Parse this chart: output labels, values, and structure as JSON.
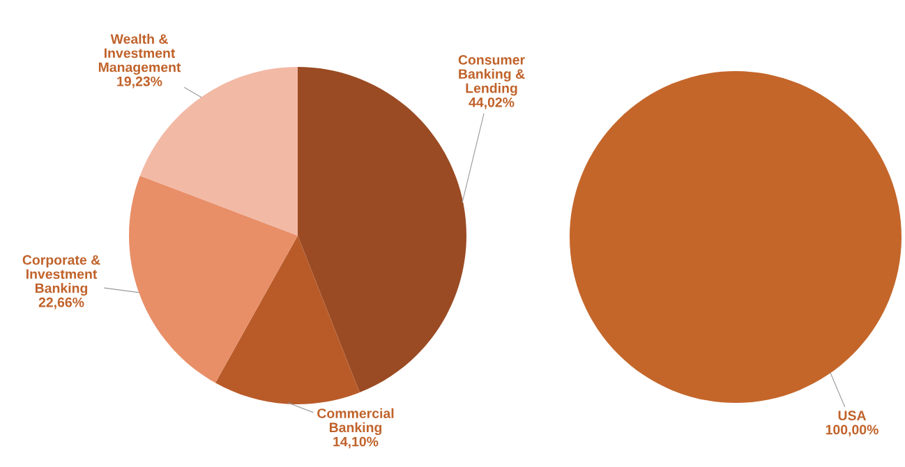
{
  "chart_data": [
    {
      "type": "pie",
      "categories": [
        "Consumer\nBanking &\nLending",
        "Commercial\nBanking",
        "Corporate &\nInvestment\nBanking",
        "Wealth &\nInvestment\nManagement"
      ],
      "values": [
        44.02,
        14.1,
        22.66,
        19.23
      ],
      "colors": [
        "#9a4b23",
        "#b95b29",
        "#e88f68",
        "#f2b9a5"
      ],
      "value_labels": [
        "44,02%",
        "14,10%",
        "22,66%",
        "19,23%"
      ]
    },
    {
      "type": "pie",
      "categories": [
        "USA"
      ],
      "values": [
        100.0
      ],
      "colors": [
        "#c4662a"
      ],
      "value_labels": [
        "100,00%"
      ]
    }
  ]
}
